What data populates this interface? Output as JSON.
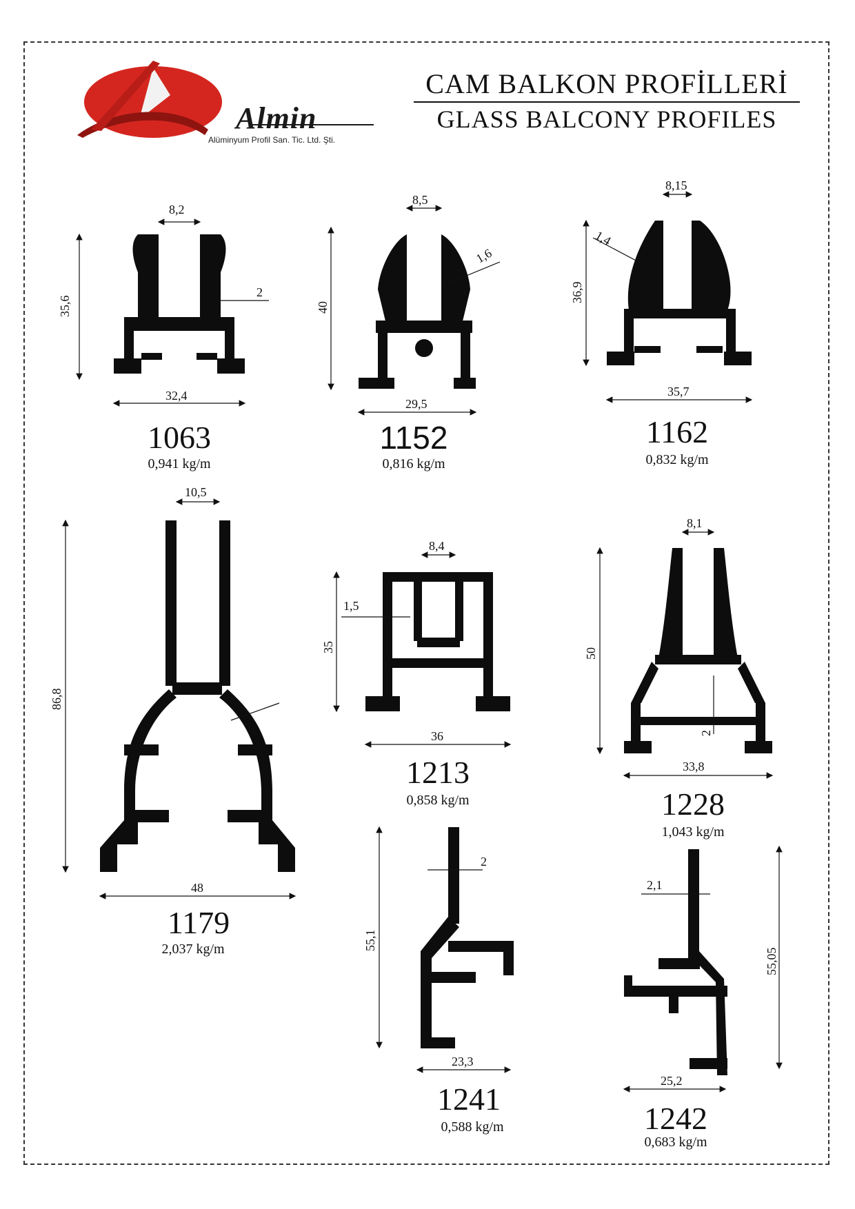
{
  "header": {
    "title_tr": "CAM BALKON PROFİLLERİ",
    "title_en": "GLASS BALCONY PROFILES",
    "logo_name": "Almin",
    "logo_subtitle": "Alüminyum Profil San. Tic. Ltd. Şti."
  },
  "colors": {
    "accent": "#d4261f",
    "profile": "#0d0d0d"
  },
  "profiles": [
    {
      "code": "1063",
      "weight": "0,941 kg/m",
      "dims": {
        "top": "8,2",
        "height": "35,6",
        "width": "32,4",
        "wall": "2"
      }
    },
    {
      "code": "1152",
      "weight": "0,816 kg/m",
      "dims": {
        "top": "8,5",
        "height": "40",
        "width": "29,5",
        "wall": "1,6"
      }
    },
    {
      "code": "1162",
      "weight": "0,832 kg/m",
      "dims": {
        "top": "8,15",
        "height": "36,9",
        "width": "35,7",
        "wall": "1,4"
      }
    },
    {
      "code": "1179",
      "weight": "2,037 kg/m",
      "dims": {
        "top": "10,5",
        "height": "86,8",
        "width": "48"
      }
    },
    {
      "code": "1213",
      "weight": "0,858 kg/m",
      "dims": {
        "top": "8,4",
        "height": "35",
        "width": "36",
        "wall": "1,5"
      }
    },
    {
      "code": "1228",
      "weight": "1,043 kg/m",
      "dims": {
        "top": "8,1",
        "height": "50",
        "width": "33,8",
        "wall": "2"
      }
    },
    {
      "code": "1241",
      "weight": "0,588 kg/m",
      "dims": {
        "height": "55,1",
        "width": "23,3",
        "wall": "2"
      }
    },
    {
      "code": "1242",
      "weight": "0,683 kg/m",
      "dims": {
        "height": "55,05",
        "width": "25,2",
        "wall": "2,1"
      }
    }
  ]
}
